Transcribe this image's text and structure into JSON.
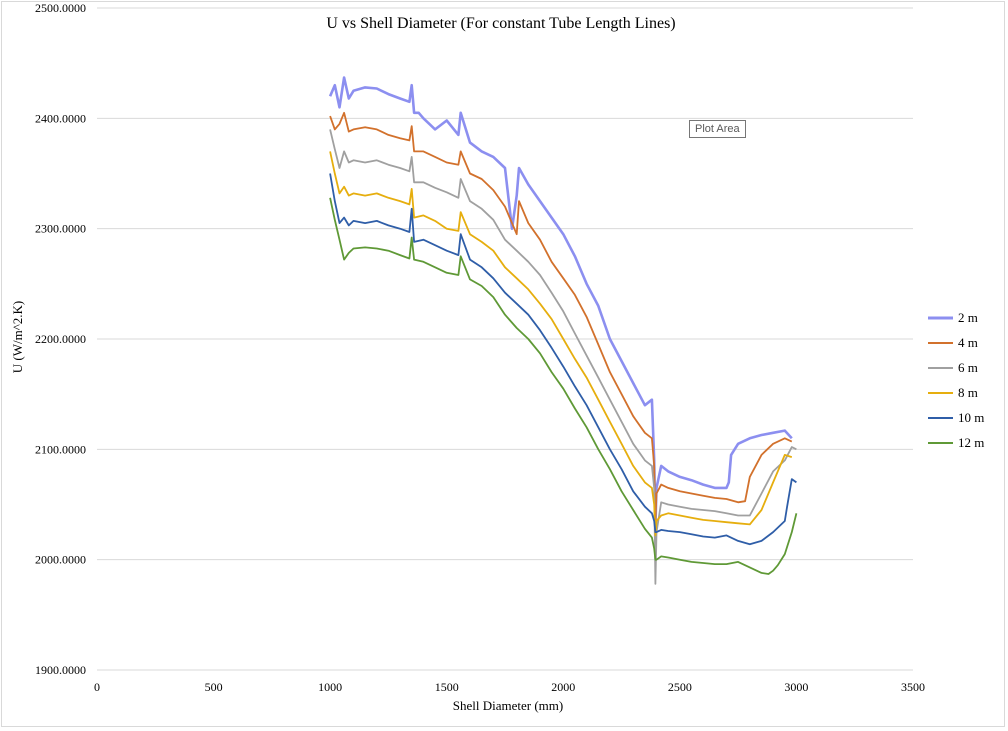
{
  "chart_data": {
    "type": "line",
    "title": "U vs Shell Diameter (For constant Tube Length Lines)",
    "xlabel": "Shell Diameter (mm)",
    "ylabel": "U (W/m^2.K)",
    "xlim": [
      0,
      3500
    ],
    "ylim": [
      1900,
      2500
    ],
    "x_ticks": [
      "0",
      "500",
      "1000",
      "1500",
      "2000",
      "2500",
      "3000",
      "3500"
    ],
    "y_ticks": [
      "1900.0000",
      "2000.0000",
      "2100.0000",
      "2200.0000",
      "2300.0000",
      "2400.0000",
      "2500.0000"
    ],
    "grid": "horizontal",
    "legend_position": "right",
    "tooltip": "Plot Area",
    "series": [
      {
        "name": "2 m",
        "color": "#8c8ff0",
        "x": [
          1000,
          1020,
          1040,
          1060,
          1080,
          1100,
          1150,
          1200,
          1250,
          1300,
          1340,
          1350,
          1360,
          1380,
          1400,
          1450,
          1500,
          1550,
          1560,
          1600,
          1650,
          1700,
          1750,
          1780,
          1800,
          1810,
          1850,
          1900,
          1950,
          2000,
          2050,
          2100,
          2150,
          2200,
          2250,
          2300,
          2350,
          2380,
          2390,
          2395,
          2400,
          2420,
          2450,
          2500,
          2550,
          2600,
          2650,
          2700,
          2710,
          2720,
          2750,
          2800,
          2850,
          2900,
          2950,
          2980
        ],
        "y": [
          2420,
          2430,
          2410,
          2437,
          2418,
          2425,
          2428,
          2427,
          2422,
          2418,
          2415,
          2430,
          2405,
          2405,
          2400,
          2390,
          2398,
          2385,
          2405,
          2378,
          2370,
          2365,
          2355,
          2300,
          2330,
          2355,
          2340,
          2325,
          2310,
          2295,
          2275,
          2250,
          2230,
          2200,
          2180,
          2160,
          2140,
          2145,
          2090,
          2030,
          2065,
          2085,
          2080,
          2075,
          2072,
          2068,
          2065,
          2065,
          2070,
          2095,
          2105,
          2110,
          2113,
          2115,
          2117,
          2110
        ]
      },
      {
        "name": "4 m",
        "color": "#d2712c",
        "x": [
          1000,
          1020,
          1040,
          1060,
          1080,
          1100,
          1150,
          1200,
          1250,
          1300,
          1340,
          1350,
          1360,
          1400,
          1450,
          1500,
          1550,
          1560,
          1600,
          1650,
          1700,
          1750,
          1800,
          1810,
          1850,
          1900,
          1950,
          2000,
          2050,
          2100,
          2150,
          2200,
          2250,
          2300,
          2350,
          2380,
          2390,
          2395,
          2400,
          2420,
          2450,
          2500,
          2550,
          2600,
          2650,
          2700,
          2750,
          2780,
          2800,
          2850,
          2900,
          2950,
          2980
        ],
        "y": [
          2402,
          2390,
          2395,
          2405,
          2388,
          2390,
          2392,
          2390,
          2385,
          2382,
          2380,
          2393,
          2370,
          2370,
          2365,
          2360,
          2358,
          2370,
          2350,
          2345,
          2335,
          2320,
          2295,
          2325,
          2305,
          2290,
          2270,
          2255,
          2240,
          2220,
          2195,
          2170,
          2150,
          2130,
          2115,
          2110,
          2085,
          2035,
          2060,
          2068,
          2065,
          2062,
          2060,
          2058,
          2056,
          2055,
          2052,
          2053,
          2075,
          2095,
          2105,
          2110,
          2107
        ]
      },
      {
        "name": "6 m",
        "color": "#a0a0a0",
        "x": [
          1000,
          1020,
          1040,
          1060,
          1080,
          1100,
          1150,
          1200,
          1250,
          1300,
          1340,
          1350,
          1360,
          1400,
          1450,
          1500,
          1550,
          1560,
          1600,
          1650,
          1700,
          1750,
          1800,
          1850,
          1900,
          1950,
          2000,
          2050,
          2100,
          2150,
          2200,
          2250,
          2300,
          2350,
          2380,
          2390,
          2395,
          2400,
          2420,
          2450,
          2500,
          2550,
          2600,
          2650,
          2700,
          2750,
          2780,
          2800,
          2850,
          2900,
          2950,
          2980,
          3000
        ],
        "y": [
          2390,
          2372,
          2355,
          2370,
          2360,
          2362,
          2360,
          2362,
          2358,
          2355,
          2352,
          2365,
          2342,
          2342,
          2337,
          2333,
          2328,
          2345,
          2325,
          2318,
          2308,
          2290,
          2280,
          2270,
          2258,
          2242,
          2225,
          2205,
          2185,
          2165,
          2145,
          2125,
          2105,
          2090,
          2085,
          2065,
          1978,
          2025,
          2052,
          2050,
          2048,
          2046,
          2045,
          2044,
          2042,
          2040,
          2040,
          2040,
          2060,
          2080,
          2090,
          2102,
          2100
        ]
      },
      {
        "name": "8 m",
        "color": "#e6ae0e",
        "x": [
          1000,
          1020,
          1040,
          1060,
          1080,
          1100,
          1150,
          1200,
          1250,
          1300,
          1340,
          1350,
          1360,
          1400,
          1450,
          1500,
          1550,
          1560,
          1600,
          1650,
          1700,
          1750,
          1800,
          1850,
          1900,
          1950,
          2000,
          2050,
          2100,
          2150,
          2200,
          2250,
          2300,
          2350,
          2380,
          2390,
          2395,
          2400,
          2420,
          2450,
          2500,
          2550,
          2600,
          2650,
          2700,
          2750,
          2800,
          2850,
          2900,
          2950,
          2980
        ],
        "y": [
          2370,
          2350,
          2332,
          2338,
          2330,
          2332,
          2330,
          2332,
          2328,
          2325,
          2322,
          2336,
          2310,
          2312,
          2307,
          2300,
          2298,
          2315,
          2295,
          2288,
          2280,
          2265,
          2255,
          2245,
          2232,
          2218,
          2200,
          2182,
          2165,
          2145,
          2125,
          2105,
          2085,
          2070,
          2065,
          2050,
          2022,
          2035,
          2040,
          2042,
          2040,
          2038,
          2036,
          2035,
          2034,
          2033,
          2032,
          2045,
          2070,
          2095,
          2093
        ]
      },
      {
        "name": "10 m",
        "color": "#2f5ea8",
        "x": [
          1000,
          1020,
          1040,
          1060,
          1080,
          1100,
          1150,
          1200,
          1250,
          1300,
          1340,
          1350,
          1360,
          1400,
          1450,
          1500,
          1550,
          1560,
          1600,
          1650,
          1700,
          1750,
          1800,
          1850,
          1900,
          1950,
          2000,
          2050,
          2100,
          2150,
          2200,
          2250,
          2300,
          2350,
          2380,
          2390,
          2395,
          2400,
          2420,
          2450,
          2500,
          2550,
          2600,
          2650,
          2700,
          2750,
          2800,
          2850,
          2900,
          2950,
          2960,
          2980,
          3000
        ],
        "y": [
          2350,
          2325,
          2305,
          2310,
          2303,
          2307,
          2305,
          2307,
          2303,
          2300,
          2297,
          2318,
          2288,
          2290,
          2285,
          2280,
          2276,
          2295,
          2272,
          2265,
          2255,
          2242,
          2232,
          2222,
          2208,
          2192,
          2175,
          2157,
          2140,
          2120,
          2100,
          2082,
          2062,
          2048,
          2042,
          2035,
          2025,
          2025,
          2027,
          2026,
          2025,
          2023,
          2021,
          2020,
          2022,
          2017,
          2014,
          2017,
          2025,
          2035,
          2048,
          2073,
          2070
        ]
      },
      {
        "name": "12 m",
        "color": "#5f9936",
        "x": [
          1000,
          1020,
          1040,
          1060,
          1080,
          1100,
          1150,
          1200,
          1250,
          1300,
          1340,
          1350,
          1360,
          1400,
          1450,
          1500,
          1550,
          1560,
          1600,
          1650,
          1700,
          1750,
          1800,
          1850,
          1900,
          1950,
          2000,
          2050,
          2100,
          2150,
          2200,
          2250,
          2300,
          2350,
          2380,
          2390,
          2395,
          2400,
          2420,
          2450,
          2500,
          2550,
          2600,
          2650,
          2700,
          2750,
          2800,
          2850,
          2880,
          2900,
          2920,
          2950,
          2980,
          3000
        ],
        "y": [
          2328,
          2308,
          2290,
          2272,
          2278,
          2282,
          2283,
          2282,
          2280,
          2276,
          2273,
          2292,
          2272,
          2270,
          2265,
          2260,
          2258,
          2275,
          2254,
          2248,
          2238,
          2222,
          2210,
          2200,
          2187,
          2170,
          2155,
          2137,
          2120,
          2100,
          2082,
          2062,
          2045,
          2028,
          2020,
          2010,
          2000,
          2000,
          2003,
          2002,
          2000,
          1998,
          1997,
          1996,
          1996,
          1998,
          1993,
          1988,
          1987,
          1990,
          1995,
          2005,
          2025,
          2042
        ]
      }
    ]
  }
}
